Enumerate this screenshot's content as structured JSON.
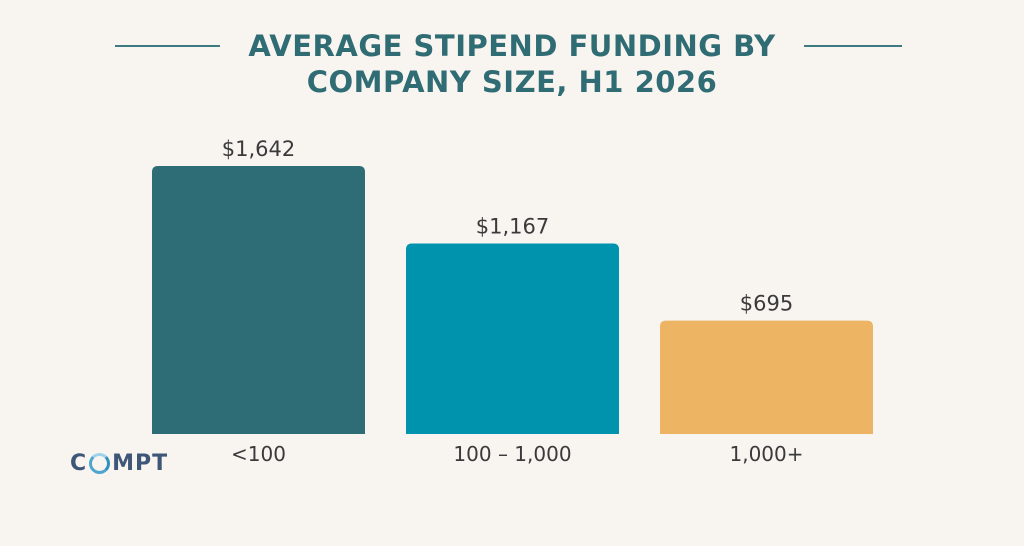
{
  "title": "AVERAGE STIPEND FUNDING BY\nCOMPANY SIZE, H1 2026",
  "brand": {
    "text_before": "C",
    "text_after": "MPT",
    "full": "COMPT",
    "ring_icon": "o-ring-icon"
  },
  "colors": {
    "background": "#f8f5f1",
    "title": "#2f6c74",
    "label": "#3a3a3a"
  },
  "chart_data": {
    "type": "bar",
    "title": "AVERAGE STIPEND FUNDING BY COMPANY SIZE, H1 2026",
    "xlabel": "",
    "ylabel": "",
    "categories": [
      "<100",
      "100 – 1,000",
      "1,000+"
    ],
    "values": [
      1642,
      1167,
      695
    ],
    "value_labels": [
      "$1,642",
      "$1,167",
      "$695"
    ],
    "bar_colors": [
      "#2e6d76",
      "#0093ad",
      "#edb563"
    ],
    "ylim": [
      0,
      1642
    ],
    "grid": false,
    "legend": "none"
  }
}
